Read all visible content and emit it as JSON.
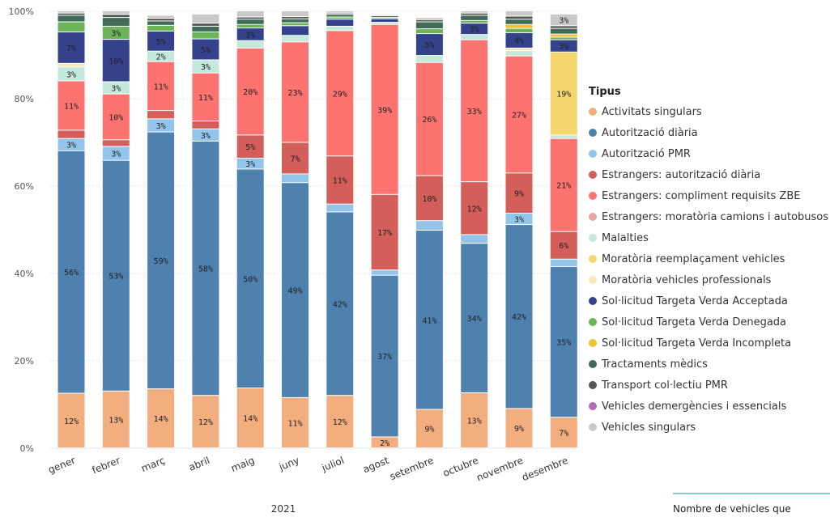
{
  "chart_data": {
    "type": "bar",
    "stacked": true,
    "percent_axis": true,
    "categories": [
      "gener",
      "febrer",
      "març",
      "abril",
      "maig",
      "juny",
      "juliol",
      "agost",
      "setembre",
      "octubre",
      "novembre",
      "desembre"
    ],
    "y_ticks": [
      "0%",
      "20%",
      "40%",
      "60%",
      "80%",
      "100%"
    ],
    "ylim": [
      0,
      100
    ],
    "legend_title": "Tipus",
    "legend_position": "right",
    "xlabel": "2021",
    "series": [
      {
        "name": "Activitats singulars",
        "color": "#f2ae7f",
        "values": [
          12.5,
          13,
          13.5,
          12,
          13.7,
          11.5,
          12,
          2.5,
          8.8,
          12.6,
          9,
          7
        ],
        "labels": [
          "12%",
          "13%",
          "14%",
          "12%",
          "14%",
          "11%",
          "12%",
          "2%",
          "9%",
          "13%",
          "9%",
          "7%"
        ]
      },
      {
        "name": "Autorització diària",
        "color": "#4e81ad",
        "values": [
          55.5,
          52.8,
          58.8,
          58.2,
          50.1,
          49.2,
          42,
          37,
          41,
          34.2,
          42.1,
          34.5
        ],
        "labels": [
          "56%",
          "53%",
          "59%",
          "58%",
          "50%",
          "49%",
          "42%",
          "37%",
          "41%",
          "34%",
          "42%",
          "35%"
        ]
      },
      {
        "name": "Autorització PMR",
        "color": "#93c5ea",
        "values": [
          2.8,
          3.2,
          3,
          2.8,
          2.5,
          2,
          1.8,
          1.2,
          2.2,
          2,
          2.6,
          1.7
        ],
        "labels": [
          "3%",
          "3%",
          "3%",
          "3%",
          "3%",
          "",
          "",
          "",
          "",
          "",
          "3%",
          ""
        ]
      },
      {
        "name": "Estrangers: autorització diària",
        "color": "#d45e5a",
        "values": [
          1.9,
          1.5,
          1.9,
          1.8,
          5.3,
          7.2,
          11,
          17.3,
          10.3,
          12.1,
          9.2,
          6.3
        ],
        "labels": [
          "",
          "",
          "",
          "",
          "5%",
          "7%",
          "11%",
          "17%",
          "10%",
          "12%",
          "9%",
          "6%"
        ]
      },
      {
        "name": "Estrangers: compliment requisits ZBE",
        "color": "#fd7370",
        "values": [
          11.3,
          10.5,
          11.2,
          11,
          19.9,
          23,
          28.7,
          38.9,
          25.9,
          32.5,
          26.8,
          21.3
        ],
        "labels": [
          "11%",
          "10%",
          "11%",
          "11%",
          "20%",
          "23%",
          "29%",
          "39%",
          "26%",
          "33%",
          "27%",
          "21%"
        ]
      },
      {
        "name": "Estrangers: moratòria camions i autobusos",
        "color": "#e8a7a0",
        "values": [
          0,
          0,
          0,
          0,
          0,
          0,
          0,
          0,
          0,
          0,
          0,
          0
        ],
        "labels": [
          "",
          "",
          "",
          "",
          "",
          "",
          "",
          "",
          "",
          "",
          "",
          ""
        ]
      },
      {
        "name": "Malalties",
        "color": "#c3e9dc",
        "values": [
          3.2,
          2.8,
          2.4,
          3,
          1.7,
          1.5,
          1,
          0.5,
          1.6,
          1.2,
          1.2,
          0.8
        ],
        "labels": [
          "3%",
          "3%",
          "2%",
          "3%",
          "",
          "",
          "",
          "",
          "",
          "",
          "",
          ""
        ]
      },
      {
        "name": "Moratòria reemplaçament vehicles",
        "color": "#f5d76e",
        "values": [
          0,
          0,
          0,
          0,
          0,
          0,
          0,
          0,
          0,
          0,
          0,
          19
        ],
        "labels": [
          "",
          "",
          "",
          "",
          "",
          "",
          "",
          "",
          "",
          "",
          "",
          "19%"
        ]
      },
      {
        "name": "Moratòria vehicles professionals",
        "color": "#f7eab8",
        "values": [
          0.8,
          0,
          0,
          0,
          0,
          0,
          0,
          0,
          0,
          0,
          0.6,
          0
        ],
        "labels": [
          "",
          "",
          "",
          "",
          "",
          "",
          "",
          "",
          "",
          "",
          "",
          ""
        ]
      },
      {
        "name": "Sol·licitud Targeta Verda Acceptada",
        "color": "#34428b",
        "values": [
          7.2,
          9.7,
          4.6,
          4.8,
          2.9,
          2.2,
          1.6,
          0.8,
          5,
          2.6,
          3.5,
          2.8
        ],
        "labels": [
          "7%",
          "10%",
          "5%",
          "5%",
          "3%",
          "",
          "",
          "",
          "5%",
          "3%",
          "4%",
          "3%"
        ]
      },
      {
        "name": "Sol·licitud Targeta Verda Denegada",
        "color": "#6cb45a",
        "values": [
          2.3,
          3,
          1.3,
          1.6,
          0.8,
          0.7,
          0.5,
          0.3,
          1.1,
          0.6,
          1,
          0.6
        ],
        "labels": [
          "",
          "3%",
          "",
          "",
          "",
          "",
          "",
          "",
          "",
          "",
          "",
          ""
        ]
      },
      {
        "name": "Sol·licitud Targeta Verda Incompleta",
        "color": "#f3bf35",
        "values": [
          0,
          0,
          0,
          0,
          0,
          0,
          0,
          0,
          0,
          0,
          0.9,
          0.7
        ],
        "labels": [
          "",
          "",
          "",
          "",
          "",
          "",
          "",
          "",
          "",
          "",
          "",
          ""
        ]
      },
      {
        "name": "Tractaments mèdics",
        "color": "#3f6b57",
        "values": [
          1.5,
          2,
          1,
          1.3,
          1.2,
          0.9,
          0.6,
          0.4,
          1.6,
          1.2,
          1.2,
          1.3
        ],
        "labels": [
          "",
          "",
          "",
          "",
          "",
          "",
          "",
          "",
          "",
          "",
          "",
          ""
        ]
      },
      {
        "name": "Transport col·lectiu PMR",
        "color": "#555555",
        "values": [
          0.5,
          0.7,
          0.6,
          0.7,
          0.5,
          0.5,
          0.3,
          0.2,
          0.5,
          0.5,
          0.7,
          0.6
        ],
        "labels": [
          "",
          "",
          "",
          "",
          "",
          "",
          "",
          "",
          "",
          "",
          "",
          ""
        ]
      },
      {
        "name": "Vehicles demergències i essencials",
        "color": "#b56bb5",
        "values": [
          0,
          0,
          0,
          0,
          0,
          0,
          0,
          0,
          0,
          0,
          0,
          0
        ],
        "labels": [
          "",
          "",
          "",
          "",
          "",
          "",
          "",
          "",
          "",
          "",
          "",
          ""
        ]
      },
      {
        "name": "Vehicles singulars",
        "color": "#c9c9c9",
        "values": [
          0.5,
          0.8,
          0.7,
          2.1,
          1.4,
          1.3,
          0.5,
          0.2,
          0.5,
          0.5,
          1.2,
          2.7
        ],
        "labels": [
          "",
          "",
          "",
          "",
          "",
          "",
          "",
          "",
          "",
          "",
          "",
          "3%"
        ]
      }
    ]
  },
  "footer": {
    "year": "2021",
    "note": "Nombre de vehicles que"
  }
}
